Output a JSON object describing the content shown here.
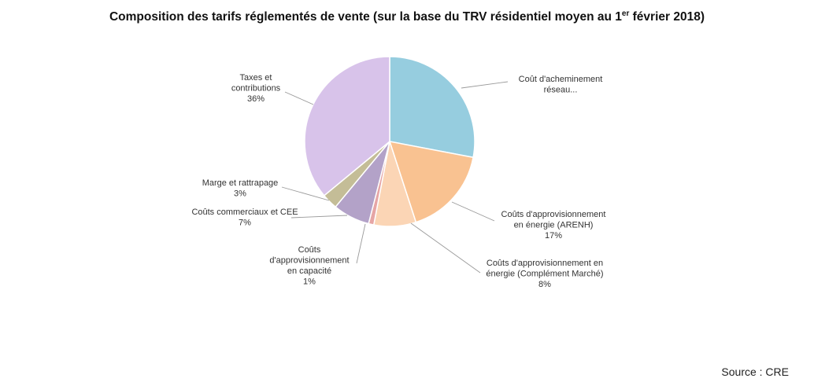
{
  "chart_data": {
    "type": "pie",
    "title": {
      "main": "Composition des tarifs réglementés de vente (sur la base du TRV résidentiel moyen au 1",
      "sup": "er",
      "tail": " février 2018)"
    },
    "slices": [
      {
        "label_lines": [
          "Coût d'acheminement",
          "réseau..."
        ],
        "value": 28,
        "pct_text": "",
        "color": "#96cddf"
      },
      {
        "label_lines": [
          "Coûts d'approvisionnement",
          "en énergie  (ARENH)"
        ],
        "value": 17,
        "pct_text": "17%",
        "color": "#f9c291"
      },
      {
        "label_lines": [
          "Coûts d'approvisionnement en",
          "énergie  (Complément Marché)"
        ],
        "value": 8,
        "pct_text": "8%",
        "color": "#fbd5b5"
      },
      {
        "label_lines": [
          "Coûts",
          "d'approvisionnement",
          "en capacité"
        ],
        "value": 1,
        "pct_text": "1%",
        "color": "#e6a5a5"
      },
      {
        "label_lines": [
          "Coûts commerciaux et CEE"
        ],
        "value": 7,
        "pct_text": "7%",
        "color": "#b3a2c8"
      },
      {
        "label_lines": [
          "Marge et rattrapage"
        ],
        "value": 3,
        "pct_text": "3%",
        "color": "#c4bd97"
      },
      {
        "label_lines": [
          "Taxes et",
          "contributions"
        ],
        "value": 36,
        "pct_text": "36%",
        "color": "#d8c3ea"
      }
    ],
    "legend": "none"
  },
  "footer": {
    "source": "Source : CRE"
  }
}
